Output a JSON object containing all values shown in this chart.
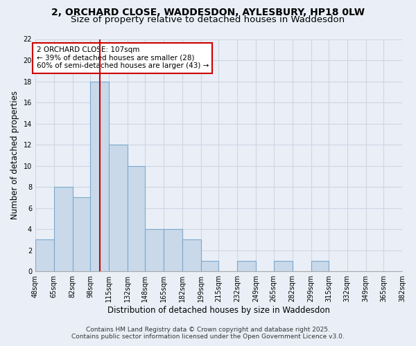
{
  "title_line1": "2, ORCHARD CLOSE, WADDESDON, AYLESBURY, HP18 0LW",
  "title_line2": "Size of property relative to detached houses in Waddesdon",
  "xlabel": "Distribution of detached houses by size in Waddesdon",
  "ylabel": "Number of detached properties",
  "bar_values": [
    3,
    8,
    7,
    18,
    12,
    10,
    4,
    4,
    3,
    1,
    0,
    1,
    0,
    1,
    0,
    1,
    0,
    0,
    0,
    0
  ],
  "bin_edges": [
    48,
    65,
    82,
    98,
    115,
    132,
    148,
    165,
    182,
    199,
    215,
    232,
    249,
    265,
    282,
    299,
    315,
    332,
    349,
    365,
    382
  ],
  "bin_labels": [
    "48sqm",
    "65sqm",
    "82sqm",
    "98sqm",
    "115sqm",
    "132sqm",
    "148sqm",
    "165sqm",
    "182sqm",
    "199sqm",
    "215sqm",
    "232sqm",
    "249sqm",
    "265sqm",
    "282sqm",
    "299sqm",
    "315sqm",
    "332sqm",
    "349sqm",
    "365sqm",
    "382sqm"
  ],
  "bar_color": "#c9d9ea",
  "bar_edge_color": "#7aa8cc",
  "red_line_x": 107,
  "annotation_text": "2 ORCHARD CLOSE: 107sqm\n← 39% of detached houses are smaller (28)\n60% of semi-detached houses are larger (43) →",
  "annotation_box_color": "#ffffff",
  "annotation_box_edge": "#cc0000",
  "red_line_color": "#cc0000",
  "ylim": [
    0,
    22
  ],
  "yticks": [
    0,
    2,
    4,
    6,
    8,
    10,
    12,
    14,
    16,
    18,
    20,
    22
  ],
  "grid_color": "#ccd6e4",
  "bg_color": "#eaeff7",
  "footer_line1": "Contains HM Land Registry data © Crown copyright and database right 2025.",
  "footer_line2": "Contains public sector information licensed under the Open Government Licence v3.0.",
  "title_fontsize": 10,
  "subtitle_fontsize": 9.5,
  "axis_label_fontsize": 8.5,
  "tick_fontsize": 7,
  "annotation_fontsize": 7.5,
  "footer_fontsize": 6.5
}
